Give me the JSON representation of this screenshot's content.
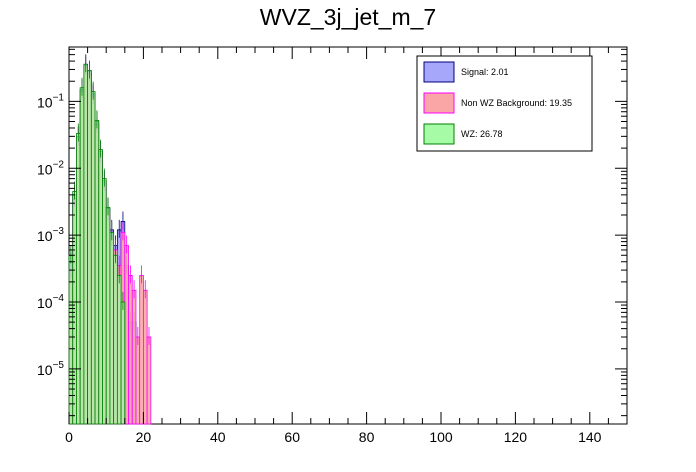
{
  "chart_data": {
    "type": "bar",
    "title": "WVZ_3j_jet_m_7",
    "xlabel": "",
    "ylabel": "",
    "xlim": [
      0,
      150
    ],
    "ylim": [
      1.5e-06,
      0.65
    ],
    "yscale": "log",
    "x_ticks": [
      0,
      20,
      40,
      60,
      80,
      100,
      120,
      140
    ],
    "x_tick_labels": [
      "0",
      "20",
      "40",
      "60",
      "80",
      "100",
      "120",
      "140"
    ],
    "y_ticks": [
      1e-05,
      0.0001,
      0.001,
      0.01,
      0.1
    ],
    "y_tick_labels": [
      {
        "base": "10",
        "exp": "−5"
      },
      {
        "base": "10",
        "exp": "−4"
      },
      {
        "base": "10",
        "exp": "−3"
      },
      {
        "base": "10",
        "exp": "−2"
      },
      {
        "base": "10",
        "exp": "−1"
      }
    ],
    "bin_width": 1,
    "bin_start": 0,
    "legend_position": "top-right",
    "series": [
      {
        "name": "Signal: 2.01",
        "fill": "#a6a6fb",
        "line": "#00007f",
        "values": [
          0.0004,
          0.004,
          0.03,
          0.15,
          0.35,
          0.28,
          0.13,
          0.05,
          0.018,
          0.0065,
          0.0025,
          0.0012,
          0.0007,
          0.0012,
          0.0016,
          0.00035,
          5e-05,
          5e-05,
          0,
          0,
          0,
          0
        ]
      },
      {
        "name": "Non WZ Background: 19.35",
        "fill": "#fba6a6",
        "line": "#ff00ff",
        "values": [
          0.0003,
          0.0035,
          0.028,
          0.14,
          0.33,
          0.26,
          0.12,
          0.045,
          0.016,
          0.006,
          0.0022,
          0.0009,
          0.0006,
          0.00035,
          0.0011,
          0.0007,
          0.00025,
          0.00015,
          3e-05,
          0.00025,
          0.00015,
          3e-05
        ]
      },
      {
        "name": "WZ: 26.78",
        "fill": "#a6fba6",
        "line": "#007f00",
        "values": [
          0.0005,
          0.0045,
          0.033,
          0.16,
          0.36,
          0.29,
          0.14,
          0.052,
          0.019,
          0.007,
          0.0026,
          0.0011,
          0.0005,
          0.00025,
          0.0001,
          0,
          0,
          0,
          0,
          0,
          0,
          0
        ]
      }
    ]
  }
}
